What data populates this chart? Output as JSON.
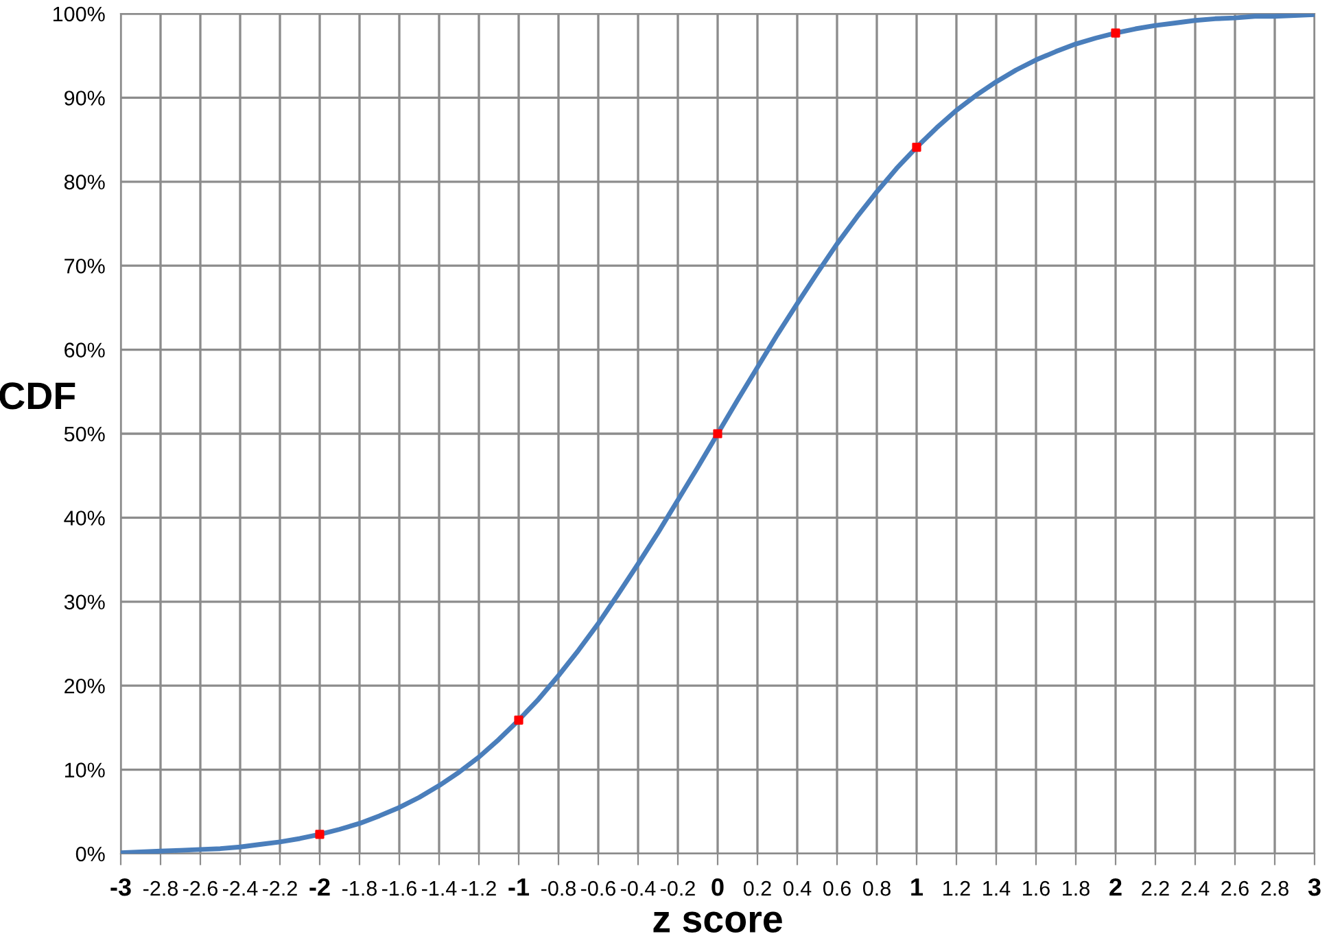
{
  "chart_data": {
    "type": "line",
    "xlabel": "z score",
    "ylabel": "CDF",
    "x": [
      -3,
      -2.9,
      -2.8,
      -2.7,
      -2.6,
      -2.5,
      -2.4,
      -2.3,
      -2.2,
      -2.1,
      -2,
      -1.9,
      -1.8,
      -1.7,
      -1.6,
      -1.5,
      -1.4,
      -1.3,
      -1.2,
      -1.1,
      -1,
      -0.9,
      -0.8,
      -0.7,
      -0.6,
      -0.5,
      -0.4,
      -0.3,
      -0.2,
      -0.1,
      0,
      0.1,
      0.2,
      0.3,
      0.4,
      0.5,
      0.6,
      0.7,
      0.8,
      0.9,
      1,
      1.1,
      1.2,
      1.3,
      1.4,
      1.5,
      1.6,
      1.7,
      1.8,
      1.9,
      2,
      2.1,
      2.2,
      2.3,
      2.4,
      2.5,
      2.6,
      2.7,
      2.8,
      2.9,
      3
    ],
    "series": [
      {
        "color": "#4a7ebb",
        "marker": "none",
        "values": [
          0.1,
          0.2,
          0.3,
          0.4,
          0.5,
          0.6,
          0.8,
          1.1,
          1.4,
          1.8,
          2.3,
          2.9,
          3.6,
          4.5,
          5.5,
          6.7,
          8.1,
          9.7,
          11.5,
          13.6,
          15.9,
          18.4,
          21.2,
          24.2,
          27.4,
          30.9,
          34.5,
          38.2,
          42.1,
          46,
          50,
          54,
          57.9,
          61.8,
          65.5,
          69.1,
          72.6,
          75.8,
          78.8,
          81.6,
          84.1,
          86.4,
          88.5,
          90.3,
          91.9,
          93.3,
          94.5,
          95.5,
          96.4,
          97.1,
          97.7,
          98.2,
          98.6,
          98.9,
          99.2,
          99.4,
          99.5,
          99.7,
          99.7,
          99.8,
          99.9
        ]
      },
      {
        "type": "scatter",
        "color": "#ff0000",
        "marker": "square",
        "x": [
          -2,
          -1,
          0,
          1,
          2
        ],
        "values": [
          2.3,
          15.9,
          50,
          84.1,
          97.7
        ]
      }
    ],
    "xlim": [
      -3,
      3
    ],
    "xticks": [
      {
        "value": -3,
        "label": "-3"
      },
      {
        "value": -2.8,
        "label": "-2.8"
      },
      {
        "value": -2.6,
        "label": "-2.6"
      },
      {
        "value": -2.4,
        "label": "-2.4"
      },
      {
        "value": -2.2,
        "label": "-2.2"
      },
      {
        "value": -2,
        "label": "-2"
      },
      {
        "value": -1.8,
        "label": "-1.8"
      },
      {
        "value": -1.6,
        "label": "-1.6"
      },
      {
        "value": -1.4,
        "label": "-1.4"
      },
      {
        "value": -1.2,
        "label": "-1.2"
      },
      {
        "value": -1,
        "label": "-1"
      },
      {
        "value": -0.8,
        "label": "-0.8"
      },
      {
        "value": -0.6,
        "label": "-0.6"
      },
      {
        "value": -0.4,
        "label": "-0.4"
      },
      {
        "value": -0.2,
        "label": "-0.2"
      },
      {
        "value": 0,
        "label": "0"
      },
      {
        "value": 0.2,
        "label": "0.2"
      },
      {
        "value": 0.4,
        "label": "0.4"
      },
      {
        "value": 0.6,
        "label": "0.6"
      },
      {
        "value": 0.8,
        "label": "0.8"
      },
      {
        "value": 1,
        "label": "1"
      },
      {
        "value": 1.2,
        "label": "1.2"
      },
      {
        "value": 1.4,
        "label": "1.4"
      },
      {
        "value": 1.6,
        "label": "1.6"
      },
      {
        "value": 1.8,
        "label": "1.8"
      },
      {
        "value": 2,
        "label": "2"
      },
      {
        "value": 2.2,
        "label": "2.2"
      },
      {
        "value": 2.4,
        "label": "2.4"
      },
      {
        "value": 2.6,
        "label": "2.6"
      },
      {
        "value": 2.8,
        "label": "2.8"
      },
      {
        "value": 3,
        "label": "3"
      }
    ],
    "ylim": [
      0,
      100
    ],
    "yticks": [
      {
        "value": 0,
        "label": "0%"
      },
      {
        "value": 10,
        "label": "10%"
      },
      {
        "value": 20,
        "label": "20%"
      },
      {
        "value": 30,
        "label": "30%"
      },
      {
        "value": 40,
        "label": "40%"
      },
      {
        "value": 50,
        "label": "50%"
      },
      {
        "value": 60,
        "label": "60%"
      },
      {
        "value": 70,
        "label": "70%"
      },
      {
        "value": 80,
        "label": "80%"
      },
      {
        "value": 90,
        "label": "90%"
      },
      {
        "value": 100,
        "label": "100%"
      }
    ],
    "grid": true
  }
}
